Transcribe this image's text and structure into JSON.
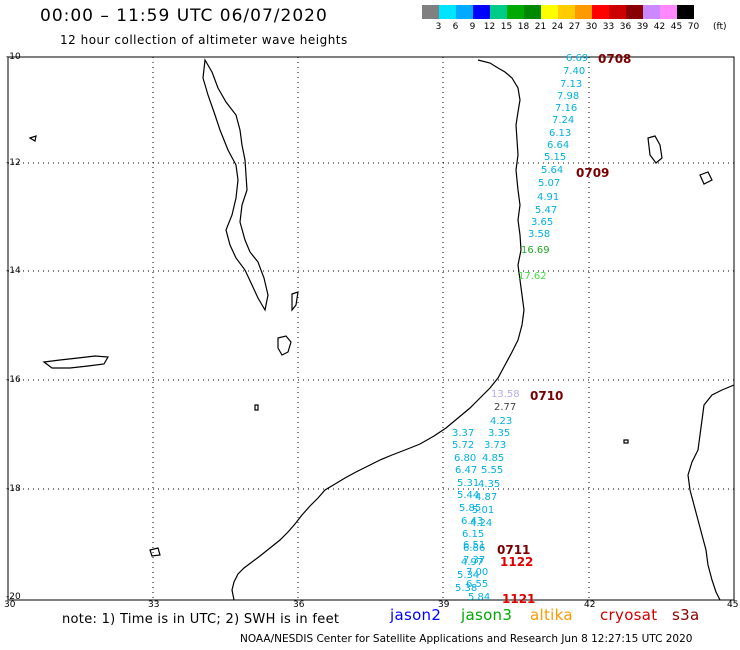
{
  "header": {
    "title": "00:00 – 11:59 UTC 06/07/2020",
    "subtitle": "12 hour collection of altimeter wave heights"
  },
  "color_scale": {
    "unit": "(ft)",
    "labels": [
      "3",
      "6",
      "9",
      "12",
      "15",
      "18",
      "21",
      "24",
      "27",
      "30",
      "33",
      "36",
      "39",
      "42",
      "45",
      "70"
    ],
    "colors": [
      "#808080",
      "#00e5ff",
      "#00aaff",
      "#0000ff",
      "#00cc88",
      "#00aa00",
      "#008800",
      "#ffff00",
      "#ffcc00",
      "#ff9900",
      "#ff0000",
      "#cc0000",
      "#880000",
      "#cc88ff",
      "#ff88ff",
      "#000000"
    ]
  },
  "axes": {
    "lat_labels": [
      "-10",
      "-12",
      "-14",
      "-16",
      "-18",
      "-20"
    ],
    "lon_labels": [
      "30",
      "33",
      "36",
      "39",
      "42",
      "45"
    ]
  },
  "passes": {
    "p0708": "0708",
    "p0709": "0709",
    "p0710": "0710",
    "p0711": "0711",
    "p1122": "1122",
    "p1121": "1121"
  },
  "wave_values": {
    "north": [
      "6.69",
      "7.40",
      "7.13",
      "7.98",
      "7.16",
      "7.24",
      "6.13",
      "6.64",
      "5.15",
      "5.64",
      "5.07",
      "4.91",
      "5.47",
      "3.65",
      "3.58"
    ],
    "green1": "16.69",
    "green2": "17.62",
    "south_a": [
      "13.58",
      "2.77",
      "4.23",
      "3.35",
      "3.73",
      "4.85",
      "5.55",
      "4.35",
      "4.87",
      "5.01",
      "4.24"
    ],
    "south_b": [
      "3.37",
      "5.72",
      "6.80",
      "6.47",
      "5.31",
      "5.44",
      "5.85",
      "6.43",
      "6.15",
      "6.51",
      "6.86",
      "7.37",
      "4.97",
      "7.00",
      "5.34",
      "5.38",
      "6.55",
      "5.84"
    ]
  },
  "footer": {
    "note": "note:  1) Time is in UTC;  2) SWH is in feet",
    "legend_jason2": "jason2",
    "legend_jason3": "jason3",
    "legend_altika": "altika",
    "legend_cryosat": "cryosat",
    "legend_s3a": "s3a",
    "legend_colors": {
      "jason2": "#0000ff",
      "jason3": "#00aa00",
      "altika": "#ff9900",
      "cryosat": "#cc0000",
      "s3a": "#880000"
    },
    "credit": "NOAA/NESDIS Center for Satellite Applications and Research    Jun  8 12:27:15 UTC 2020"
  }
}
